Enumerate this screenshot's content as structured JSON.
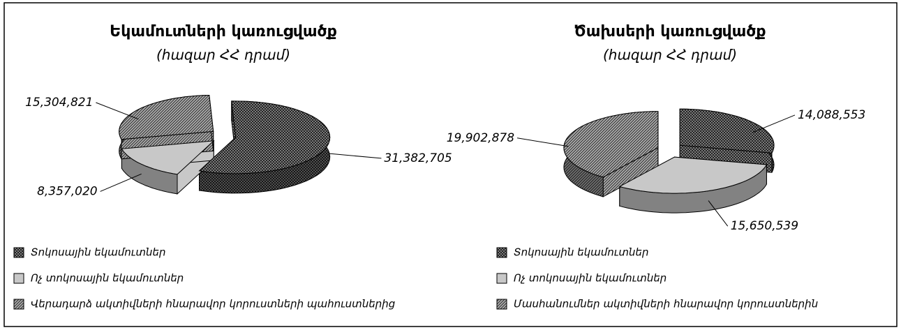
{
  "chart_data": [
    {
      "type": "pie3d",
      "title": "Եկամուտների կառուցվածք",
      "subtitle": "(հազար ՀՀ դրամ)",
      "categories": [
        "Տոկոսային եկամուտներ",
        "Ոչ տոկոսային եկամուտներ",
        "Վերադարձ ակտիվների հնարավոր կորուստների պահուստներից"
      ],
      "values": [
        31382705,
        8357020,
        15304821
      ],
      "value_labels": [
        "31,382,705",
        "8,357,020",
        "15,304,821"
      ],
      "colors": [
        "#8c8c8c",
        "#c8c8c8",
        "#a8a8a8"
      ]
    },
    {
      "type": "pie3d",
      "title": "Ծախսերի կառուցվածք",
      "subtitle": "(հազար ՀՀ դրամ)",
      "categories": [
        "Տոկոսային եկամուտներ",
        "Ոչ տոկոսային եկամուտներ",
        "Մասհանումներ ակտիվների հնարավոր կորուստներին"
      ],
      "values": [
        14088553,
        15650539,
        19902878
      ],
      "value_labels": [
        "14,088,553",
        "15,650,539",
        "19,902,878"
      ],
      "colors": [
        "#8c8c8c",
        "#c8c8c8",
        "#a8a8a8"
      ]
    }
  ]
}
